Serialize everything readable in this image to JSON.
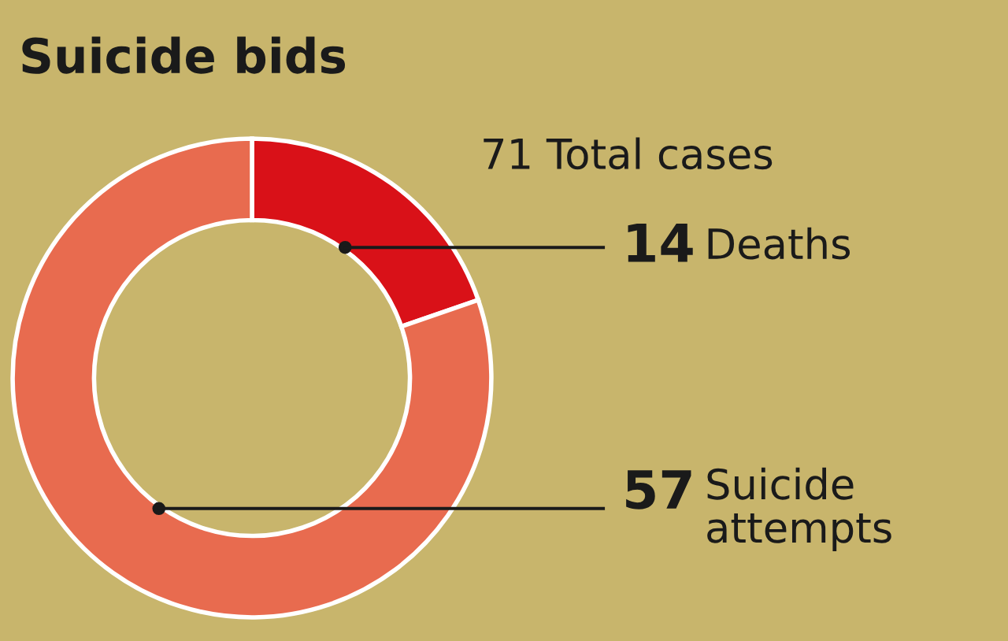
{
  "chart_data": {
    "type": "donut",
    "title": "Suicide bids",
    "categories": [
      "Deaths",
      "Suicide\nattempts"
    ],
    "values": [
      14,
      57
    ],
    "colors": [
      "#d91118",
      "#e86b4f"
    ],
    "data_labels": true,
    "annotations": [
      "71 Total cases"
    ]
  }
}
